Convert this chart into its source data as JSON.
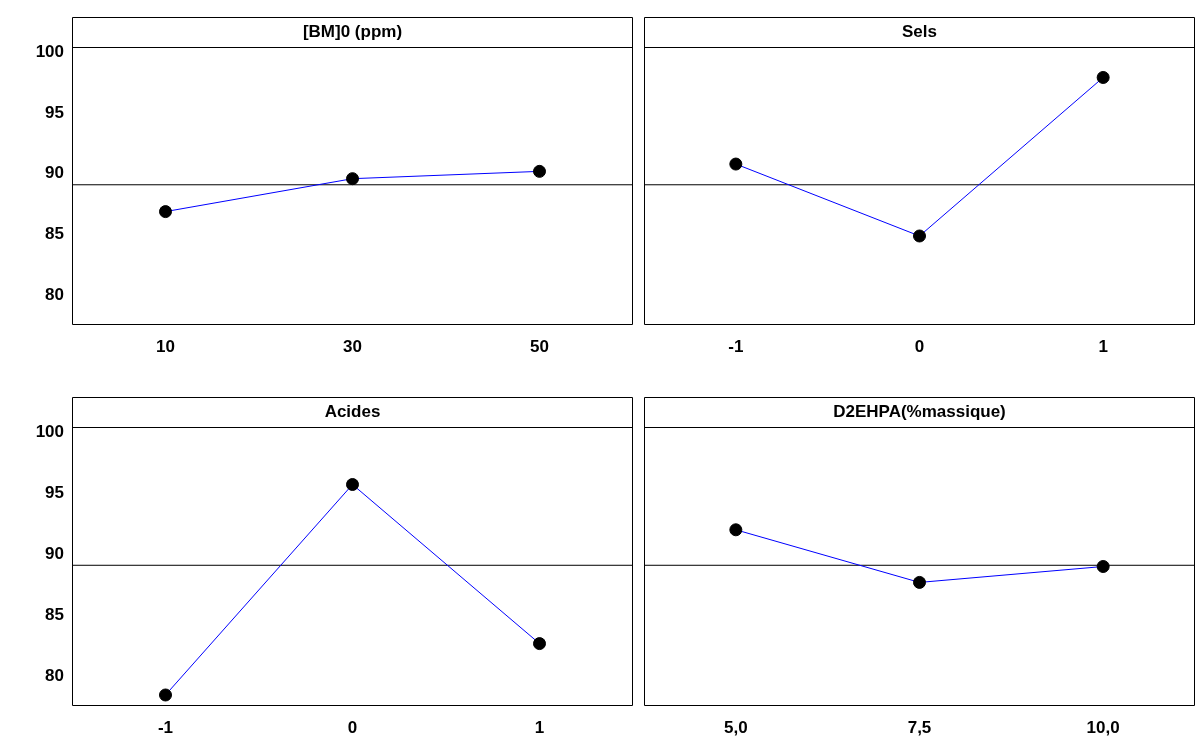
{
  "chart_data": [
    {
      "type": "line",
      "title": "[BM]0 (ppm)",
      "categories": [
        "10",
        "30",
        "50"
      ],
      "series": [
        {
          "color": "#0000ff",
          "values": [
            86.9,
            89.6,
            90.2
          ]
        }
      ],
      "ylim": [
        77.6,
        100.4
      ],
      "yticks": [
        80,
        85,
        90,
        95,
        100
      ],
      "grid": false,
      "legend": false,
      "marker": "circle",
      "ref_lines": [
        {
          "axis": "y",
          "value": 89.1,
          "color": "#000000"
        }
      ]
    },
    {
      "type": "line",
      "title": "Sels",
      "categories": [
        "-1",
        "0",
        "1"
      ],
      "series": [
        {
          "color": "#0000ff",
          "values": [
            90.8,
            84.9,
            97.9
          ]
        }
      ],
      "ylim": [
        77.6,
        100.4
      ],
      "yticks": [
        80,
        85,
        90,
        95,
        100
      ],
      "grid": false,
      "legend": false,
      "marker": "circle",
      "tick_labels": "x",
      "ref_lines": [
        {
          "axis": "y",
          "value": 89.1,
          "color": "#000000"
        }
      ]
    },
    {
      "type": "line",
      "title": "Acides",
      "categories": [
        "-1",
        "0",
        "1"
      ],
      "series": [
        {
          "color": "#0000ff",
          "values": [
            78.5,
            95.7,
            82.7
          ]
        }
      ],
      "ylim": [
        77.6,
        100.4
      ],
      "yticks": [
        80,
        85,
        90,
        95,
        100
      ],
      "grid": false,
      "legend": false,
      "marker": "circle",
      "ref_lines": [
        {
          "axis": "y",
          "value": 89.1,
          "color": "#000000"
        }
      ]
    },
    {
      "type": "line",
      "title": "D2EHPA(%massique)",
      "categories": [
        "5,0",
        "7,5",
        "10,0"
      ],
      "series": [
        {
          "color": "#0000ff",
          "values": [
            92.0,
            87.7,
            89.0
          ]
        }
      ],
      "ylim": [
        77.6,
        100.4
      ],
      "yticks": [
        80,
        85,
        90,
        95,
        100
      ],
      "grid": false,
      "legend": false,
      "marker": "circle",
      "tick_labels": "x",
      "ref_lines": [
        {
          "axis": "y",
          "value": 89.1,
          "color": "#000000"
        }
      ]
    }
  ]
}
